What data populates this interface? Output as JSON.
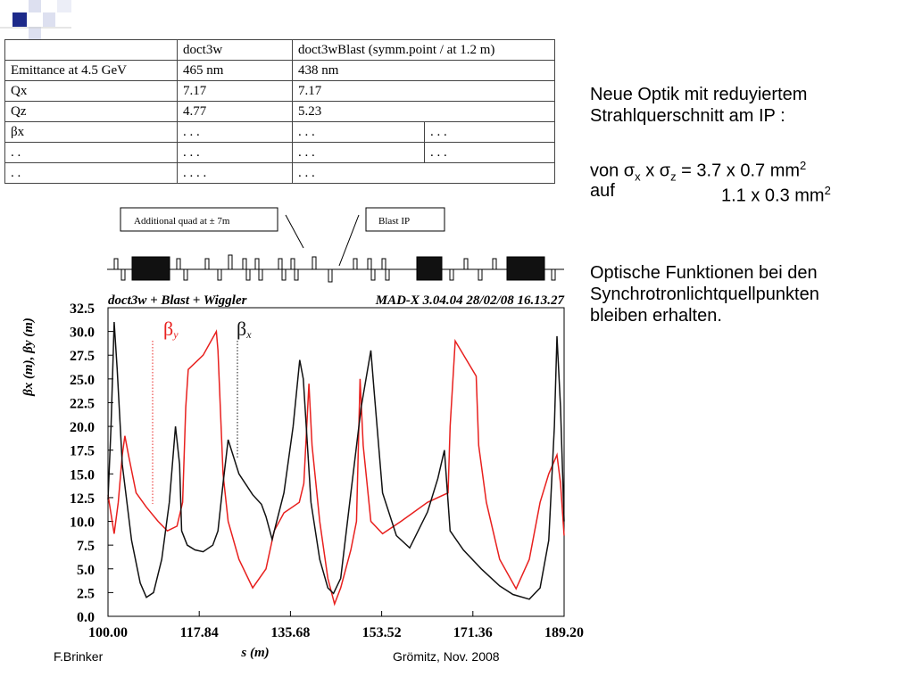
{
  "table": {
    "header": [
      "doct3w",
      "doct3wBlast (symm.point / at 1.2 m)"
    ],
    "rows": [
      [
        "Emittance at 4.5 GeV",
        "465 nm",
        "438 nm"
      ],
      [
        "Qx",
        "7.17",
        "7.17"
      ],
      [
        "Qz",
        "4.77",
        "5.23"
      ],
      [
        "βx",
        ". . .",
        ". . .",
        ". . ."
      ],
      [
        ". .",
        ". . .",
        ". . .",
        ". . ."
      ],
      [
        ". .",
        ". . . .",
        ". . ."
      ]
    ]
  },
  "notes": {
    "lines": [
      "Neue Optik mit reduyiertem",
      "Strahlquerschnitt am IP :"
    ],
    "formula1": [
      "von σ",
      "x",
      " x σ",
      "z",
      " = 3.7 x 0.7 mm",
      "2"
    ],
    "formula2": [
      "auf",
      "1.1 x 0.3 mm",
      "2"
    ],
    "paragraph": [
      "Optische Funktionen bei den",
      "Synchrotronlichtquellpunkten",
      "bleiben erhalten."
    ]
  },
  "layout_labels": [
    "Additional quad at ± 7m",
    "Blast IP"
  ],
  "chart_data": {
    "type": "line",
    "title": "doct3w + Blast + Wiggler",
    "subtitle": "MAD-X 3.04.04  28/02/08 16.13.27",
    "x_label": "s (m)",
    "y_label": "βx (m), βy (m)",
    "xlim": [
      100,
      189.2
    ],
    "xticks": [
      {
        "value": 100,
        "label": "100.00"
      },
      117.84,
      135.68,
      153.52,
      171.36,
      {
        "value": 189.2,
        "label": "189.20"
      }
    ],
    "ylim": [
      0,
      32.5
    ],
    "yticks": [
      {
        "value": 0,
        "label": "0.0"
      },
      2.5,
      {
        "value": 5,
        "label": "5.0"
      },
      7.5,
      {
        "value": 10,
        "label": "10.0"
      },
      12.5,
      {
        "value": 15,
        "label": "15.0"
      },
      17.5,
      {
        "value": 20,
        "label": "20.0"
      },
      22.5,
      {
        "value": 25,
        "label": "25.0"
      },
      27.5,
      {
        "value": 30,
        "label": "30.0"
      },
      32.5
    ],
    "series": [
      {
        "name": "βy",
        "color": "#e8201e",
        "x": [
          100.0,
          101.2,
          102.0,
          102.8,
          103.3,
          104.0,
          105.5,
          107.5,
          109.8,
          111.6,
          113.5,
          114.6,
          115.2,
          115.7,
          118.6,
          121.2,
          121.5,
          122.5,
          123.5,
          125.6,
          128.3,
          130.9,
          132.5,
          134.4,
          137.4,
          138.3,
          139.3,
          139.9,
          141.4,
          143.0,
          144.3,
          145.5,
          147.5,
          148.6,
          149.3,
          149.9,
          151.4,
          153.7,
          157.3,
          162.5,
          166.5,
          166.9,
          167.9,
          172.0,
          172.5,
          174.0,
          176.6,
          179.8,
          182.4,
          184.5,
          186.2,
          187.8,
          188.5,
          189.2
        ],
        "values": [
          12.8,
          8.7,
          12,
          17,
          19,
          17,
          13,
          11.5,
          10,
          9,
          9.5,
          12,
          22,
          26,
          27.5,
          30,
          28,
          15,
          10,
          6,
          3,
          5,
          9,
          10.9,
          12,
          14,
          24.5,
          18,
          10,
          4,
          1.3,
          3,
          7,
          10,
          25,
          18,
          10,
          8.7,
          10,
          12,
          13,
          20,
          29,
          25.3,
          18,
          12,
          6,
          2.9,
          6,
          12,
          15,
          17,
          14,
          8.5
        ]
      },
      {
        "name": "βx",
        "color": "#111111",
        "x": [
          100.0,
          100.6,
          101.2,
          101.8,
          102.8,
          104.6,
          106.3,
          107.5,
          108.9,
          110.5,
          112.0,
          113.2,
          114.0,
          114.4,
          115.5,
          117.0,
          118.6,
          120.5,
          121.5,
          122.5,
          123.5,
          125.6,
          128.3,
          130.0,
          130.9,
          132.1,
          134.4,
          136.2,
          137.5,
          138.2,
          139.7,
          141.4,
          143.0,
          144.1,
          145.5,
          147.5,
          149.5,
          151.4,
          152.0,
          153.7,
          156.4,
          159.0,
          162.5,
          164.5,
          165.8,
          166.9,
          169.5,
          173.0,
          176.6,
          179.2,
          182.4,
          184.5,
          186.2,
          187.3,
          187.8,
          188.5,
          189.2
        ],
        "values": [
          12.3,
          20,
          31,
          26,
          16,
          8,
          3.5,
          2.0,
          2.5,
          6,
          12,
          20,
          16,
          9,
          7.5,
          7,
          6.8,
          7.5,
          9,
          14,
          18.6,
          15,
          12.8,
          11.8,
          10.5,
          8.1,
          13,
          20,
          27,
          25,
          12,
          6,
          3,
          2.4,
          4,
          13,
          22,
          28,
          24,
          13,
          8.5,
          7.2,
          11,
          14.5,
          17.5,
          9,
          7,
          5,
          3.2,
          2.3,
          1.8,
          3,
          8,
          20,
          29.5,
          22,
          10
        ]
      }
    ]
  },
  "footer": {
    "author": "F.Brinker",
    "place": "Grömitz, Nov. 2008"
  }
}
